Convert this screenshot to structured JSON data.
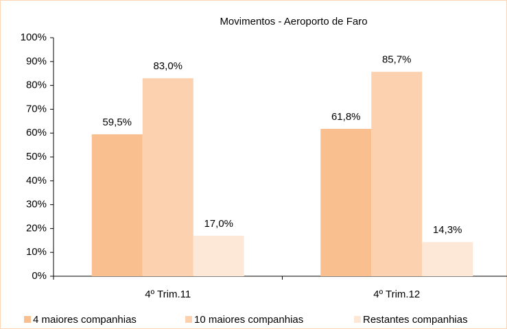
{
  "chart_data": {
    "type": "bar",
    "title": "Movimentos - Aeroporto de Faro",
    "categories": [
      "4º Trim.11",
      "4º Trim.12"
    ],
    "series": [
      {
        "name": "4 maiores companhias",
        "color": "#f9bf8f",
        "values": [
          59.5,
          61.8
        ],
        "value_labels": [
          "59,5%",
          "61,8%"
        ]
      },
      {
        "name": "10 maiores companhias",
        "color": "#fbd1b0",
        "values": [
          83.0,
          85.7
        ],
        "value_labels": [
          "83,0%",
          "85,7%"
        ]
      },
      {
        "name": "Restantes companhias",
        "color": "#fde7d7",
        "values": [
          17.0,
          14.3
        ],
        "value_labels": [
          "17,0%",
          "14,3%"
        ]
      }
    ],
    "ylim": [
      0,
      100
    ],
    "yticks": [
      {
        "value": 0,
        "label": "0%"
      },
      {
        "value": 10,
        "label": "10%"
      },
      {
        "value": 20,
        "label": "20%"
      },
      {
        "value": 30,
        "label": "30%"
      },
      {
        "value": 40,
        "label": "40%"
      },
      {
        "value": 50,
        "label": "50%"
      },
      {
        "value": 60,
        "label": "60%"
      },
      {
        "value": 70,
        "label": "70%"
      },
      {
        "value": 80,
        "label": "80%"
      },
      {
        "value": 90,
        "label": "90%"
      },
      {
        "value": 100,
        "label": "100%"
      }
    ],
    "grid": false,
    "legend": "bottom"
  }
}
